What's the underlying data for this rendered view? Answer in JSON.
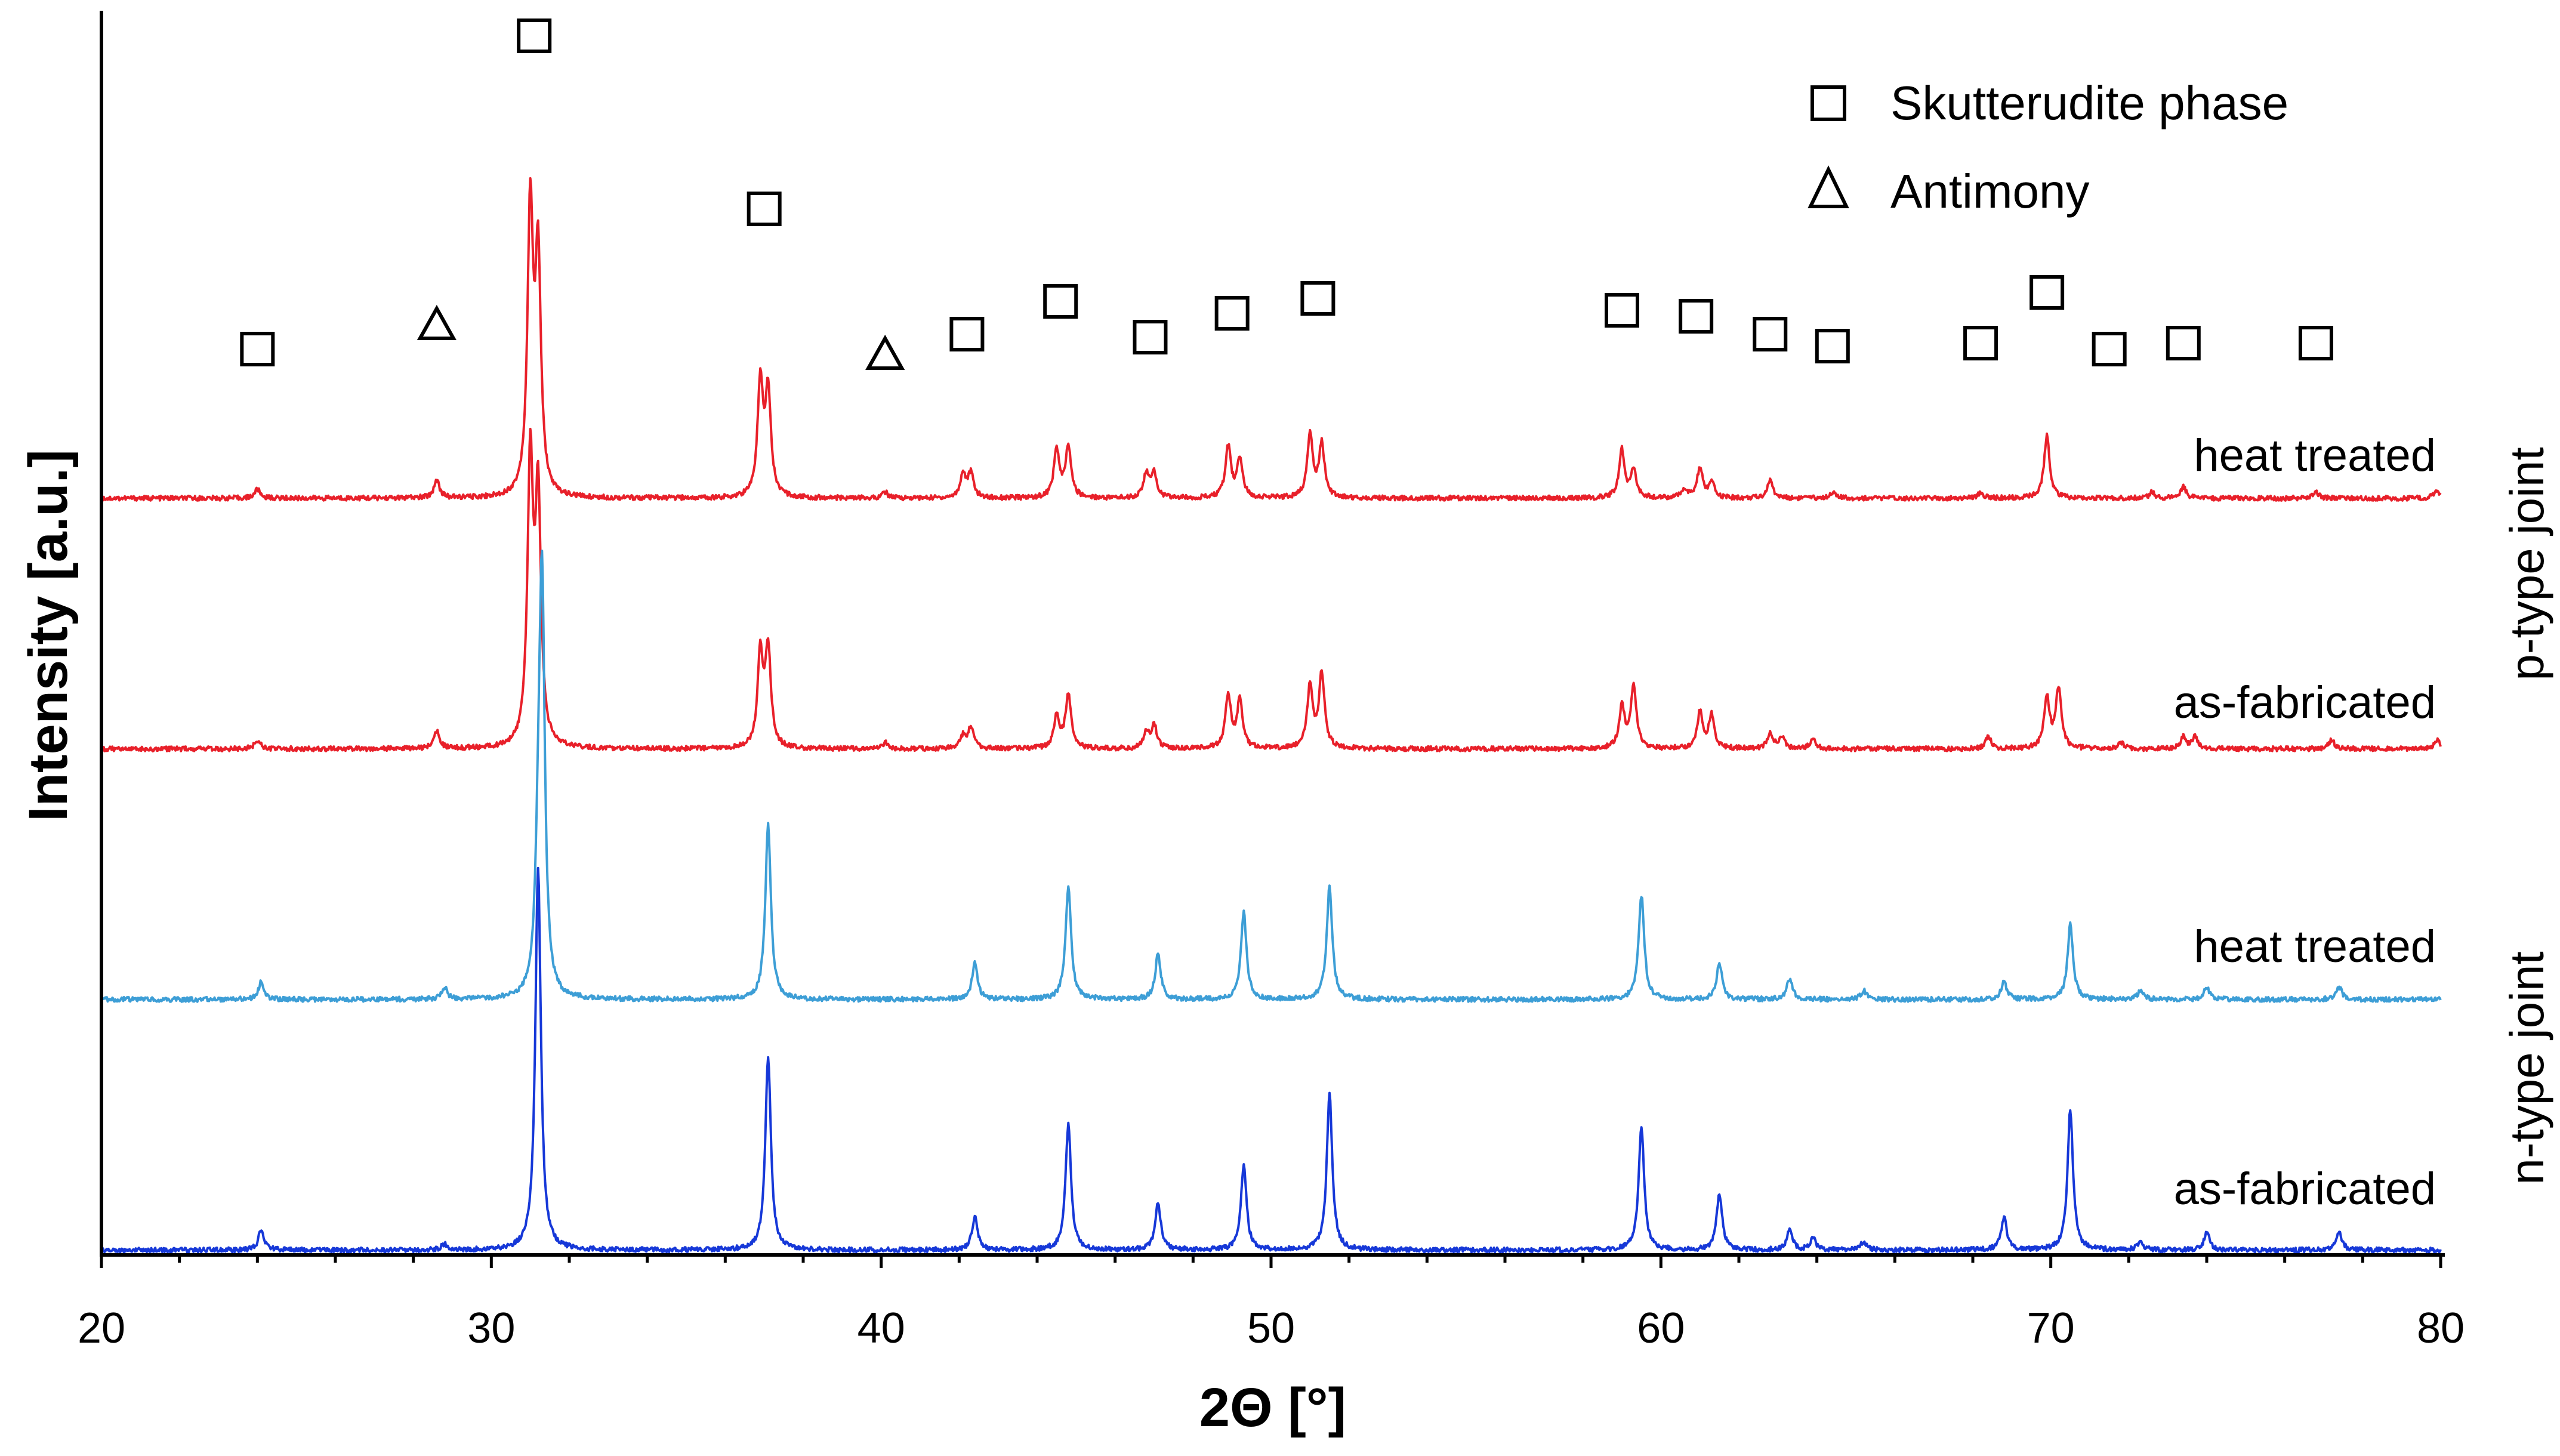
{
  "chart_data": {
    "type": "line",
    "title": "",
    "xlabel": "2Θ [°]",
    "ylabel": "Intensity [a.u.]",
    "xlim": [
      20,
      80
    ],
    "xticks": [
      "20",
      "30",
      "40",
      "50",
      "60",
      "70",
      "80"
    ],
    "y_ticks_shown": false,
    "group_labels": [
      {
        "text": "p-type joint",
        "series": [
          "p_heat",
          "p_asfab"
        ]
      },
      {
        "text": "n-type joint",
        "series": [
          "n_heat",
          "n_asfab"
        ]
      }
    ],
    "legend": {
      "position": "top-right",
      "entries": [
        {
          "marker": "square",
          "label": "Skutterudite phase"
        },
        {
          "marker": "triangle",
          "label": "Antimony"
        }
      ]
    },
    "series": [
      {
        "id": "p_heat",
        "name": "heat treated",
        "group": "p-type joint",
        "color": "#e8202a",
        "offset": 3,
        "peaks": [
          [
            24.0,
            0.03
          ],
          [
            28.6,
            0.06
          ],
          [
            31.0,
            0.96
          ],
          [
            31.2,
            0.78
          ],
          [
            36.9,
            0.38
          ],
          [
            37.1,
            0.35
          ],
          [
            40.1,
            0.02
          ],
          [
            42.1,
            0.08
          ],
          [
            42.3,
            0.08
          ],
          [
            44.5,
            0.16
          ],
          [
            44.8,
            0.17
          ],
          [
            46.8,
            0.08
          ],
          [
            47.0,
            0.08
          ],
          [
            48.9,
            0.17
          ],
          [
            49.2,
            0.13
          ],
          [
            51.0,
            0.21
          ],
          [
            51.3,
            0.18
          ],
          [
            59.0,
            0.16
          ],
          [
            59.3,
            0.09
          ],
          [
            60.6,
            0.03
          ],
          [
            61.0,
            0.1
          ],
          [
            61.3,
            0.05
          ],
          [
            62.8,
            0.06
          ],
          [
            64.4,
            0.02
          ],
          [
            68.2,
            0.02
          ],
          [
            69.9,
            0.21
          ],
          [
            72.6,
            0.02
          ],
          [
            73.4,
            0.04
          ],
          [
            76.8,
            0.02
          ],
          [
            79.9,
            0.03
          ]
        ]
      },
      {
        "id": "p_asfab",
        "name": "as-fabricated",
        "group": "p-type joint",
        "color": "#e8202a",
        "offset": 2,
        "peaks": [
          [
            24.0,
            0.03
          ],
          [
            28.6,
            0.06
          ],
          [
            31.0,
            0.95
          ],
          [
            31.2,
            0.82
          ],
          [
            36.9,
            0.31
          ],
          [
            37.1,
            0.33
          ],
          [
            40.1,
            0.02
          ],
          [
            42.1,
            0.04
          ],
          [
            42.3,
            0.07
          ],
          [
            44.5,
            0.11
          ],
          [
            44.8,
            0.18
          ],
          [
            46.8,
            0.05
          ],
          [
            47.0,
            0.08
          ],
          [
            48.9,
            0.18
          ],
          [
            49.2,
            0.16
          ],
          [
            51.0,
            0.21
          ],
          [
            51.3,
            0.25
          ],
          [
            59.0,
            0.14
          ],
          [
            59.3,
            0.21
          ],
          [
            61.0,
            0.12
          ],
          [
            61.3,
            0.11
          ],
          [
            62.8,
            0.05
          ],
          [
            63.1,
            0.04
          ],
          [
            63.9,
            0.03
          ],
          [
            68.4,
            0.04
          ],
          [
            69.9,
            0.17
          ],
          [
            70.2,
            0.2
          ],
          [
            71.8,
            0.02
          ],
          [
            73.4,
            0.04
          ],
          [
            73.7,
            0.04
          ],
          [
            77.2,
            0.03
          ],
          [
            79.9,
            0.03
          ]
        ]
      },
      {
        "id": "n_heat",
        "name": "heat treated",
        "group": "n-type joint",
        "color": "#3d9ed6",
        "offset": 1,
        "peaks": [
          [
            24.1,
            0.06
          ],
          [
            28.8,
            0.04
          ],
          [
            31.2,
            0.31
          ],
          [
            31.3,
            1.38
          ],
          [
            37.1,
            0.59
          ],
          [
            42.4,
            0.12
          ],
          [
            44.8,
            0.38
          ],
          [
            47.1,
            0.15
          ],
          [
            49.3,
            0.29
          ],
          [
            51.5,
            0.38
          ],
          [
            59.5,
            0.35
          ],
          [
            61.5,
            0.12
          ],
          [
            63.3,
            0.07
          ],
          [
            65.2,
            0.03
          ],
          [
            68.8,
            0.06
          ],
          [
            70.5,
            0.25
          ],
          [
            72.3,
            0.03
          ],
          [
            74.0,
            0.04
          ],
          [
            77.4,
            0.04
          ]
        ]
      },
      {
        "id": "n_asfab",
        "name": "as-fabricated",
        "group": "n-type joint",
        "color": "#1638d8",
        "offset": 0,
        "peaks": [
          [
            24.1,
            0.07
          ],
          [
            28.8,
            0.02
          ],
          [
            31.2,
            1.28
          ],
          [
            37.1,
            0.65
          ],
          [
            42.4,
            0.11
          ],
          [
            44.8,
            0.42
          ],
          [
            47.1,
            0.16
          ],
          [
            49.3,
            0.28
          ],
          [
            51.5,
            0.52
          ],
          [
            59.5,
            0.41
          ],
          [
            61.5,
            0.19
          ],
          [
            63.3,
            0.07
          ],
          [
            63.9,
            0.04
          ],
          [
            65.2,
            0.03
          ],
          [
            68.8,
            0.11
          ],
          [
            70.5,
            0.47
          ],
          [
            72.3,
            0.03
          ],
          [
            74.0,
            0.06
          ],
          [
            77.4,
            0.06
          ]
        ]
      }
    ],
    "reflection_markers": [
      {
        "type": "square",
        "x": 24.0,
        "level": 0.5
      },
      {
        "type": "triangle",
        "x": 28.6,
        "level": 0.58
      },
      {
        "type": "square",
        "x": 31.1,
        "level": 1.55
      },
      {
        "type": "square",
        "x": 37.0,
        "level": 0.97
      },
      {
        "type": "triangle",
        "x": 40.1,
        "level": 0.48
      },
      {
        "type": "square",
        "x": 42.2,
        "level": 0.55
      },
      {
        "type": "square",
        "x": 44.6,
        "level": 0.66
      },
      {
        "type": "square",
        "x": 46.9,
        "level": 0.54
      },
      {
        "type": "square",
        "x": 49.0,
        "level": 0.62
      },
      {
        "type": "square",
        "x": 51.2,
        "level": 0.67
      },
      {
        "type": "square",
        "x": 59.0,
        "level": 0.63
      },
      {
        "type": "square",
        "x": 60.9,
        "level": 0.61
      },
      {
        "type": "square",
        "x": 62.8,
        "level": 0.55
      },
      {
        "type": "square",
        "x": 64.4,
        "level": 0.51
      },
      {
        "type": "square",
        "x": 68.2,
        "level": 0.52
      },
      {
        "type": "square",
        "x": 69.9,
        "level": 0.69
      },
      {
        "type": "square",
        "x": 71.5,
        "level": 0.5
      },
      {
        "type": "square",
        "x": 73.4,
        "level": 0.52
      },
      {
        "type": "square",
        "x": 76.8,
        "level": 0.52
      }
    ]
  }
}
